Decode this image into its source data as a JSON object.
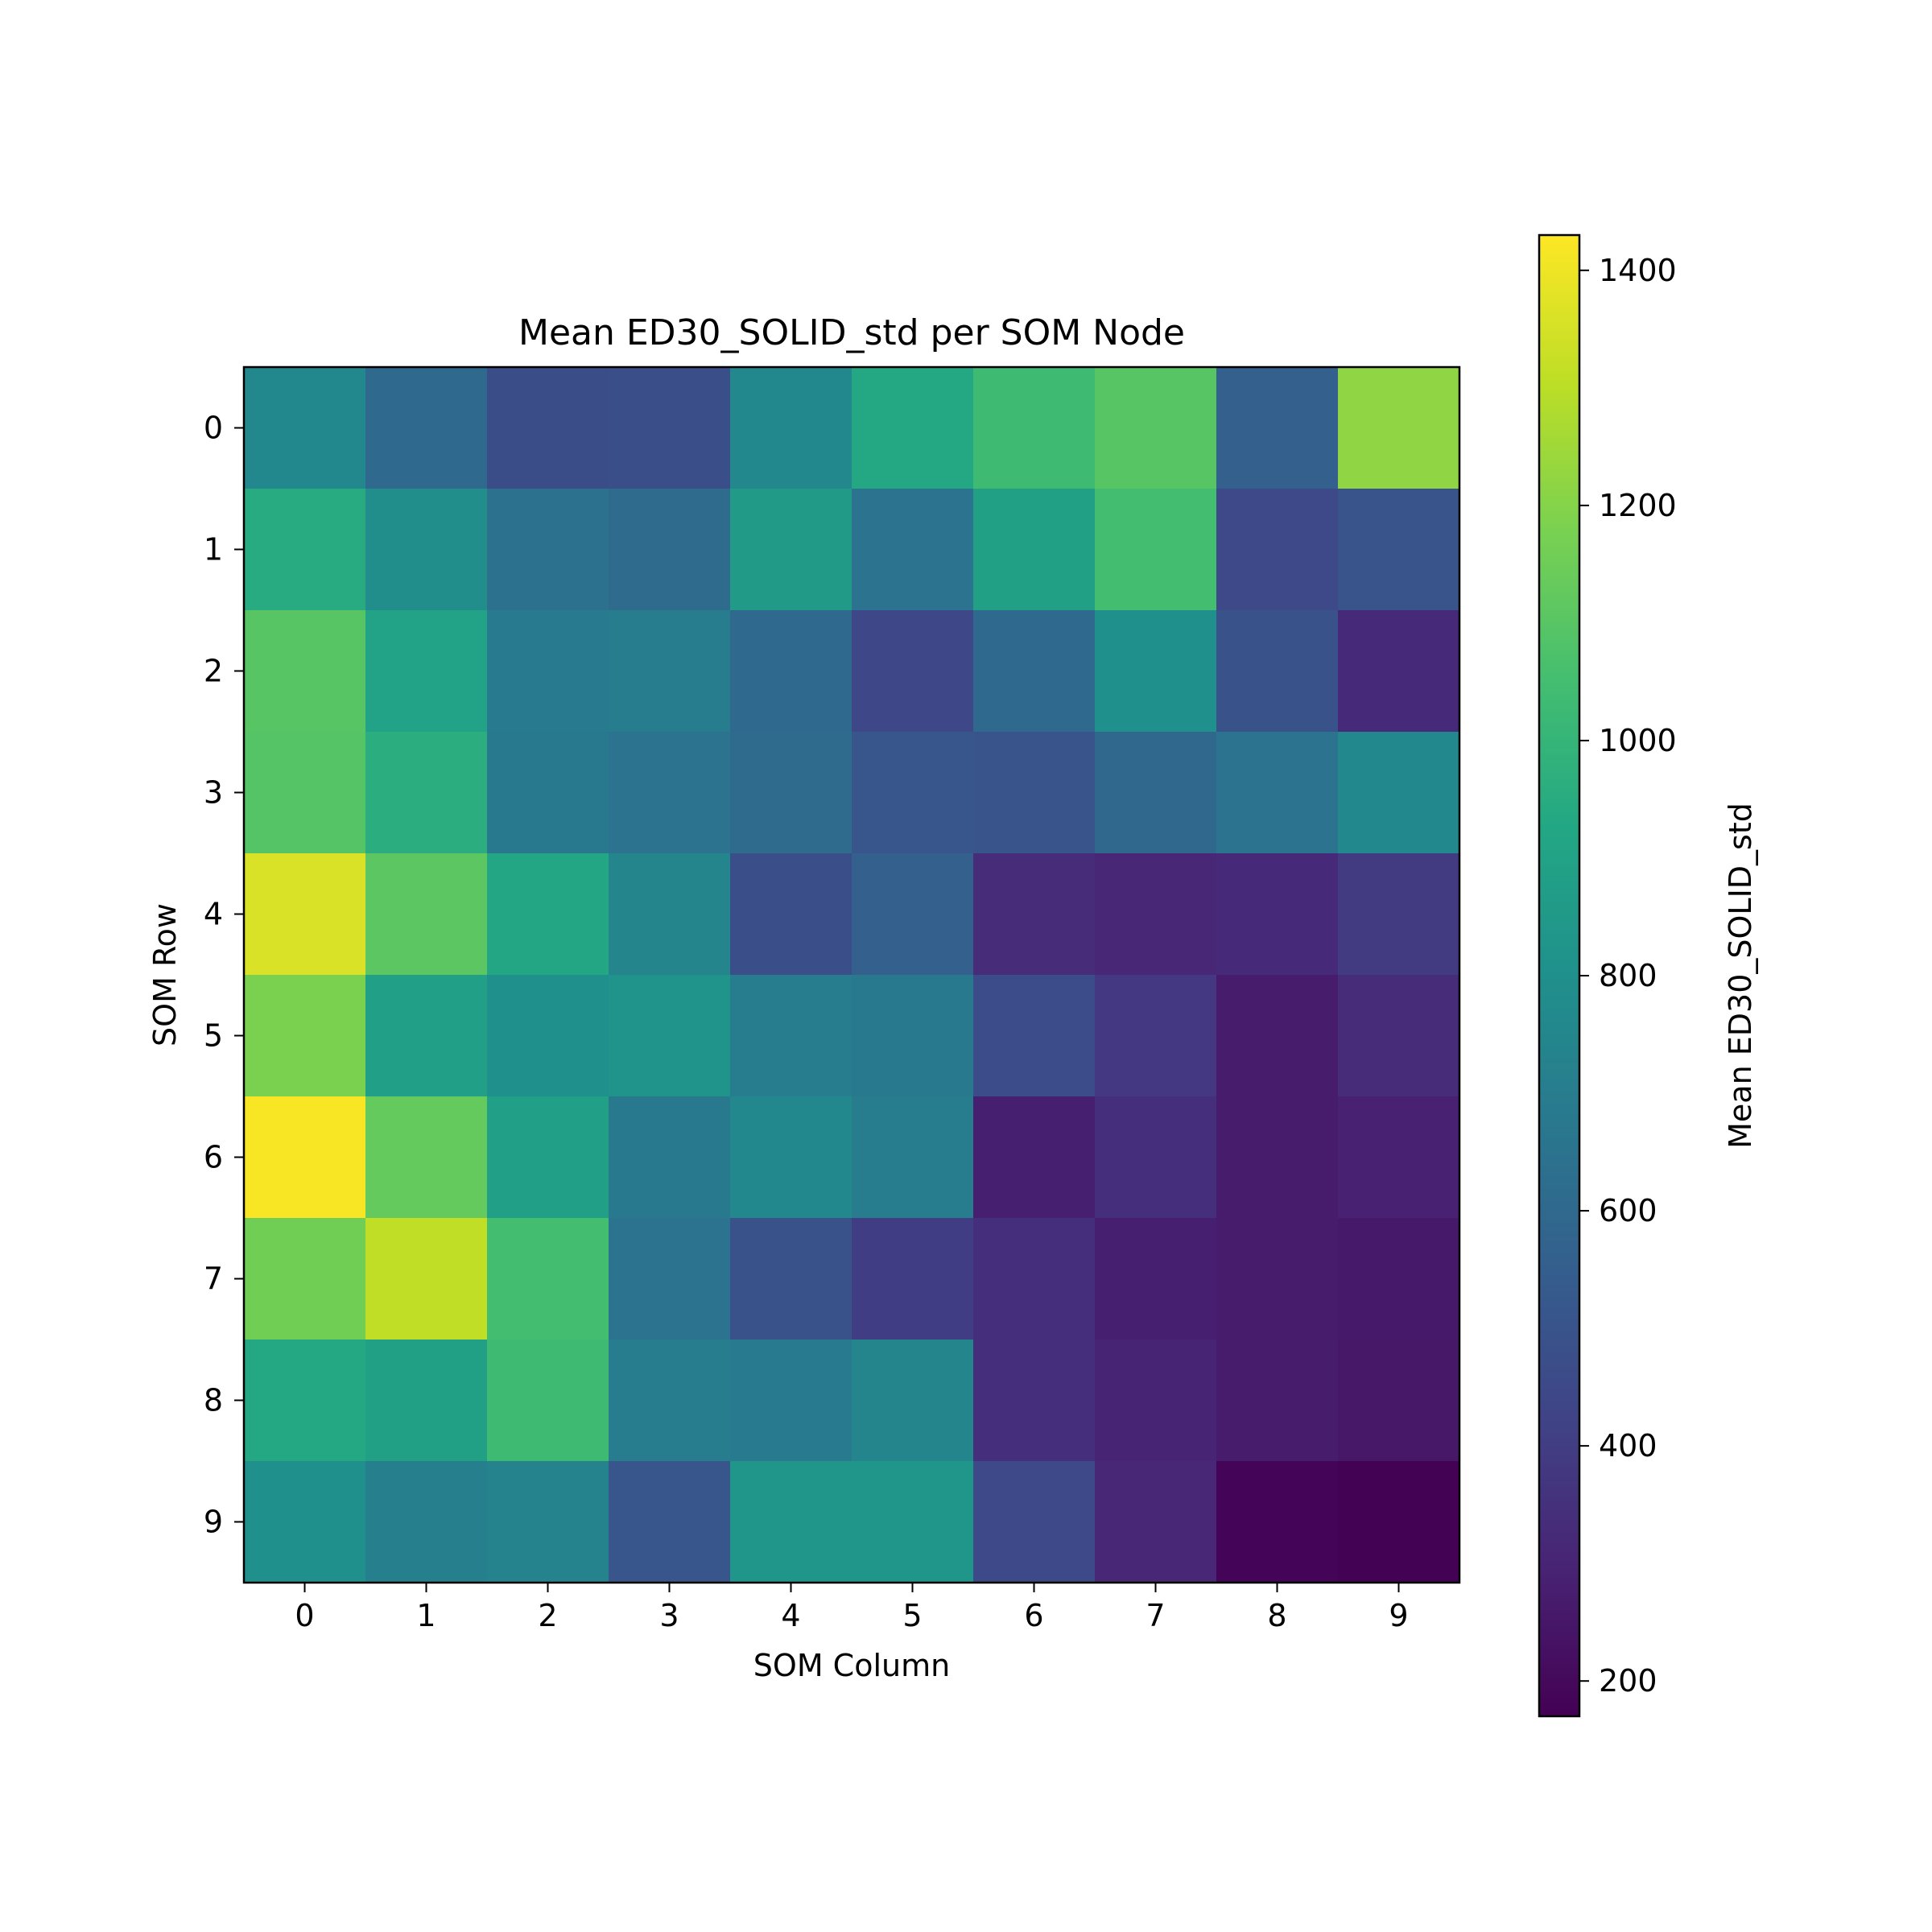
{
  "chart_data": {
    "type": "heatmap",
    "title": "Mean ED30_SOLID_std per SOM Node",
    "xlabel": "SOM Column",
    "ylabel": "SOM Row",
    "x_ticks": [
      "0",
      "1",
      "2",
      "3",
      "4",
      "5",
      "6",
      "7",
      "8",
      "9"
    ],
    "y_ticks": [
      "0",
      "1",
      "2",
      "3",
      "4",
      "5",
      "6",
      "7",
      "8",
      "9"
    ],
    "colormap": "viridis",
    "colorbar_label": "Mean ED30_SOLID_std",
    "colorbar_ticks": [
      "200",
      "400",
      "600",
      "800",
      "1000",
      "1200",
      "1400"
    ],
    "colorbar_range": [
      170,
      1430
    ],
    "values": [
      [
        760,
        600,
        470,
        480,
        760,
        930,
        1030,
        1100,
        560,
        1220
      ],
      [
        950,
        790,
        640,
        610,
        860,
        650,
        890,
        1050,
        450,
        500
      ],
      [
        1100,
        900,
        690,
        700,
        600,
        440,
        600,
        800,
        490,
        320
      ],
      [
        1090,
        960,
        680,
        650,
        610,
        510,
        500,
        590,
        650,
        760
      ],
      [
        1360,
        1110,
        920,
        740,
        480,
        560,
        330,
        310,
        320,
        390
      ],
      [
        1180,
        880,
        800,
        820,
        700,
        680,
        460,
        380,
        270,
        330
      ],
      [
        1420,
        1130,
        880,
        680,
        760,
        700,
        280,
        340,
        270,
        290
      ],
      [
        1160,
        1310,
        1050,
        650,
        490,
        400,
        340,
        280,
        270,
        260
      ],
      [
        930,
        890,
        1030,
        700,
        690,
        740,
        340,
        300,
        270,
        250
      ],
      [
        800,
        710,
        730,
        510,
        830,
        830,
        450,
        310,
        180,
        175
      ]
    ]
  }
}
